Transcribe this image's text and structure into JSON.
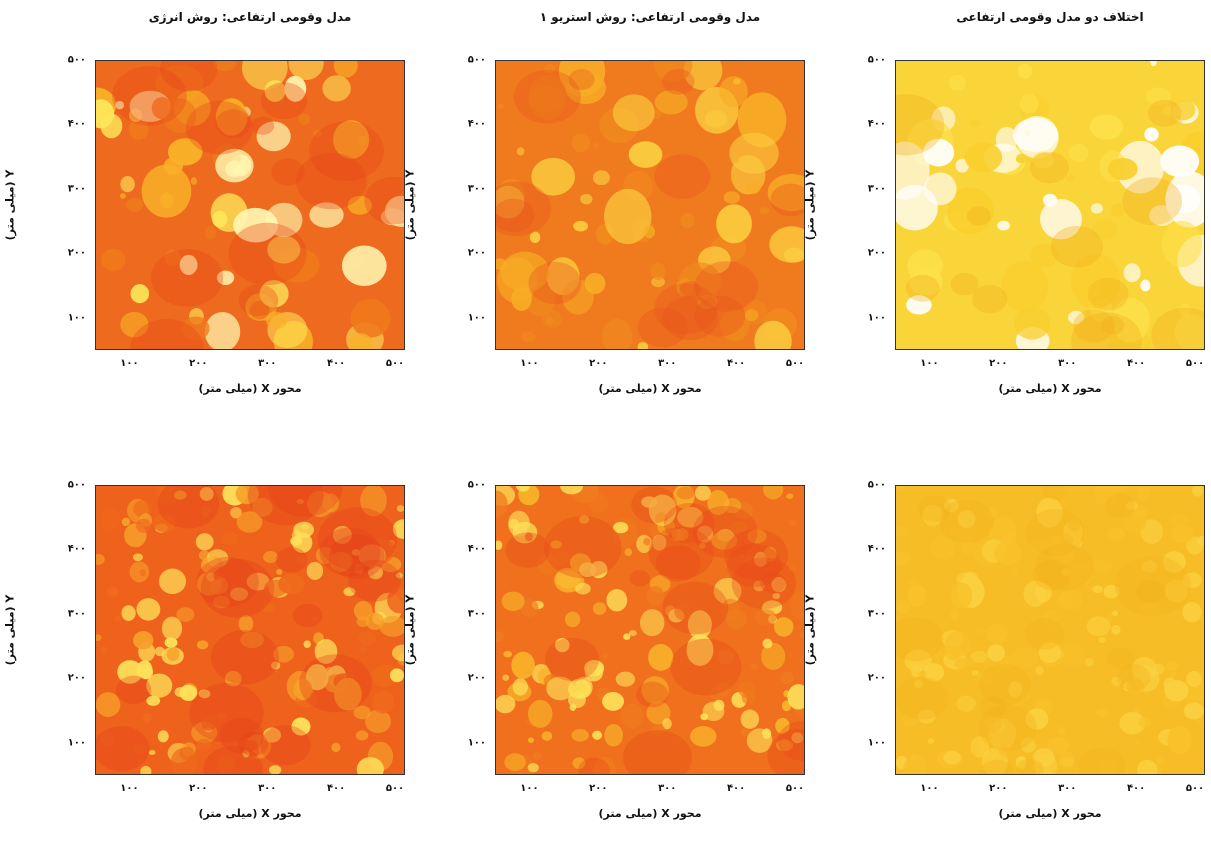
{
  "chart_data": [
    {
      "type": "heatmap",
      "title": "مدل وقومی ارتفاعی: روش انرژی",
      "xlabel": "محور X (میلی متر)",
      "ylabel": "Y (میلی متر)",
      "xticks": [
        100,
        200,
        300,
        400,
        500
      ],
      "yticks": [
        100,
        200,
        300,
        400,
        500
      ],
      "xlim": [
        50,
        500
      ],
      "ylim": [
        50,
        500
      ],
      "colormap": [
        "#e8461a",
        "#f07a1c",
        "#f9b228",
        "#fde85a",
        "#fff6b0"
      ],
      "background": "#ee6a1e"
    },
    {
      "type": "heatmap",
      "title": "مدل وقومی ارتفاعی: روش استریو ۱",
      "xlabel": "محور X (میلی متر)",
      "ylabel": "Y (میلی متر)",
      "xticks": [
        100,
        200,
        300,
        400,
        500
      ],
      "yticks": [
        100,
        200,
        300,
        400,
        500
      ],
      "xlim": [
        50,
        500
      ],
      "ylim": [
        50,
        500
      ],
      "colormap": [
        "#e8521c",
        "#f08a1e",
        "#f7ad26",
        "#fbd040"
      ],
      "background": "#f07a1e"
    },
    {
      "type": "heatmap",
      "title": "اختلاف دو مدل وقومی ارتفاعی",
      "xlabel": "محور X (میلی متر)",
      "ylabel": "Y (میلی متر)",
      "xticks": [
        100,
        200,
        300,
        400,
        500
      ],
      "yticks": [
        100,
        200,
        300,
        400,
        500
      ],
      "xlim": [
        50,
        500
      ],
      "ylim": [
        50,
        500
      ],
      "colormap": [
        "#f2b01e",
        "#f9cf2e",
        "#fde04a",
        "#ffffff"
      ],
      "background": "#fad53a"
    },
    {
      "type": "heatmap",
      "title": "",
      "xlabel": "محور X (میلی متر)",
      "ylabel": "Y (میلی متر)",
      "xticks": [
        100,
        200,
        300,
        400,
        500
      ],
      "yticks": [
        100,
        200,
        300,
        400,
        500
      ],
      "xlim": [
        50,
        500
      ],
      "ylim": [
        50,
        500
      ],
      "colormap": [
        "#e4401a",
        "#ef6a1c",
        "#f6a02a",
        "#fde25a"
      ],
      "background": "#ef621c"
    },
    {
      "type": "heatmap",
      "title": "",
      "xlabel": "محور X (میلی متر)",
      "ylabel": "Y (میلی متر)",
      "xticks": [
        100,
        200,
        300,
        400,
        500
      ],
      "yticks": [
        100,
        200,
        300,
        400,
        500
      ],
      "xlim": [
        50,
        500
      ],
      "ylim": [
        50,
        500
      ],
      "colormap": [
        "#e8481b",
        "#f07a1e",
        "#f8b42a",
        "#fde25a"
      ],
      "background": "#f0701d"
    },
    {
      "type": "heatmap",
      "title": "",
      "xlabel": "محور X (میلی متر)",
      "ylabel": "Y (میلی متر)",
      "xticks": [
        100,
        200,
        300,
        400,
        500
      ],
      "yticks": [
        100,
        200,
        300,
        400,
        500
      ],
      "xlim": [
        50,
        500
      ],
      "ylim": [
        50,
        500
      ],
      "colormap": [
        "#f4b11e",
        "#f8c12a",
        "#fbd040"
      ],
      "background": "#f6bd26"
    }
  ]
}
